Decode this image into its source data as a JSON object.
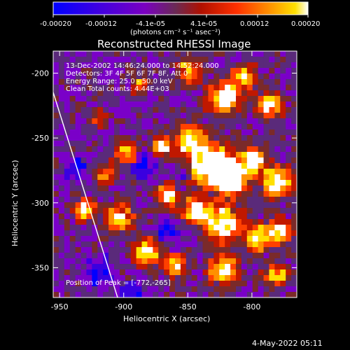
{
  "colorbar": {
    "ticks": [
      "-0.00020",
      "-0.00012",
      "-4.1e-05",
      "4.1e-05",
      "0.00012",
      "0.00020"
    ],
    "units": "(photons cm⁻² s⁻¹ asec⁻²)"
  },
  "image": {
    "title": "Reconstructed RHESSI Image",
    "info_lines": [
      "13-Dec-2002 14:46:24.000 to 14:52:24.000",
      "Detectors: 3F 4F 5F 6F 7F 8F, Att 0",
      "Energy Range: 25.0 - 50.0 keV",
      "Clean     Total counts: 4.44E+03"
    ],
    "peak_label": "Position of Peak = [-772,-265]"
  },
  "axes": {
    "xlabel": "Heliocentric X (arcsec)",
    "ylabel": "Heliocentric Y (arcsec)",
    "x_ticks": [
      "-950",
      "-900",
      "-850",
      "-800"
    ],
    "y_ticks": [
      "-200",
      "-250",
      "-300",
      "-350"
    ],
    "x_tick_values": [
      -950,
      -900,
      -850,
      -800
    ],
    "y_tick_values": [
      -200,
      -250,
      -300,
      -350
    ],
    "xlim": [
      -955,
      -765
    ],
    "ylim": [
      -373,
      -183
    ]
  },
  "footer": {
    "timestamp": "4-May-2022 05:11"
  },
  "colors": {
    "colormap": [
      "#0000ff",
      "#3a00e0",
      "#7a00c8",
      "#5a2a7a",
      "#7a2a2a",
      "#c01800",
      "#ff4000",
      "#ff9000",
      "#ffe000",
      "#ffffff"
    ],
    "limb_line": "#ffffff"
  }
}
